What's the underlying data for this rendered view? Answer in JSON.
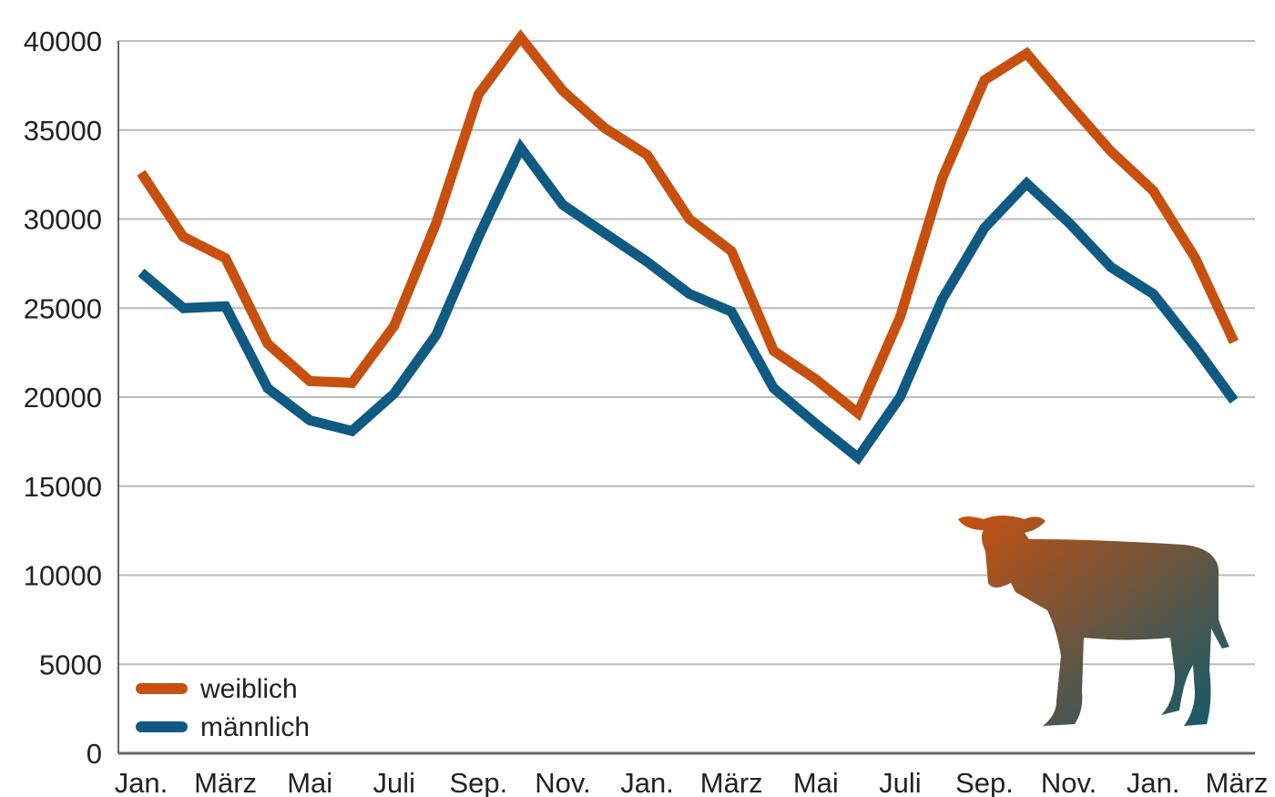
{
  "chart_data": {
    "type": "line",
    "title": "",
    "xlabel": "",
    "ylabel": "",
    "ylim": [
      0,
      40000
    ],
    "yticks": [
      0,
      5000,
      10000,
      15000,
      20000,
      25000,
      30000,
      35000,
      40000
    ],
    "x_tick_labels": [
      "Jan.",
      "März",
      "Mai",
      "Juli",
      "Sep.",
      "Nov.",
      "Jan.",
      "März",
      "Mai",
      "Juli",
      "Sep.",
      "Nov.",
      "Jan.",
      "März"
    ],
    "grid": "horizontal",
    "legend_position": "bottom-left",
    "series": [
      {
        "name": "weiblich",
        "color": "#c8500f",
        "values": [
          32600,
          29000,
          27800,
          23000,
          20900,
          20800,
          24000,
          29800,
          37000,
          40200,
          37200,
          35100,
          33600,
          30000,
          28200,
          22600,
          21000,
          19100,
          24500,
          32300,
          37800,
          39300,
          36500,
          33800,
          31600,
          27800,
          23100
        ]
      },
      {
        "name": "männlich",
        "color": "#0f5a82",
        "values": [
          27000,
          25000,
          25100,
          20500,
          18700,
          18100,
          20200,
          23500,
          29000,
          34000,
          30800,
          29200,
          27600,
          25800,
          24800,
          20500,
          18500,
          16600,
          20000,
          25500,
          29500,
          32000,
          29800,
          27300,
          25800,
          22800,
          19800
        ]
      }
    ]
  },
  "decoration": {
    "icon": "calf-silhouette-icon",
    "gradient": [
      "#c8500f",
      "#0f5a6e"
    ]
  }
}
